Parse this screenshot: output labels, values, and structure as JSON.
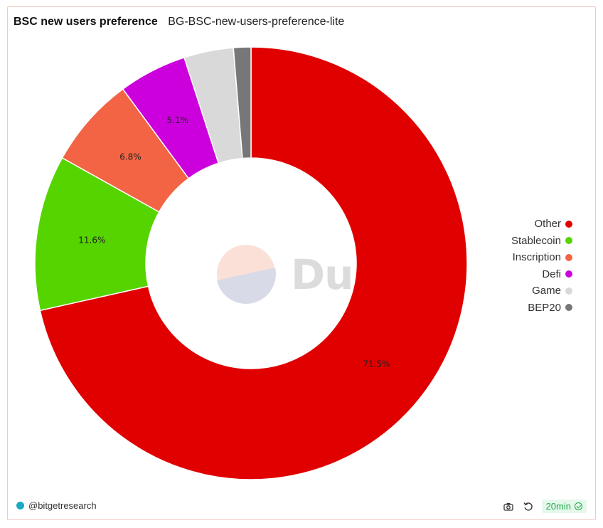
{
  "header": {
    "title": "BSC new users preference",
    "subtitle": "BG-BSC-new-users-preference-lite"
  },
  "watermark": {
    "text": "Dune"
  },
  "footer": {
    "author": "@bitgetresearch",
    "refresh_badge": "20min"
  },
  "icons": [
    "camera-icon",
    "refresh-icon",
    "check-circle-icon"
  ],
  "chart_data": {
    "type": "pie",
    "donut": true,
    "categories": [
      "Other",
      "Stablecoin",
      "Inscription",
      "Defi",
      "Game",
      "BEP20"
    ],
    "values": [
      71.5,
      11.6,
      6.8,
      5.1,
      3.7,
      1.3
    ],
    "labels": [
      "71.5%",
      "11.6%",
      "6.8%",
      "5.1%",
      "",
      ""
    ],
    "colors": [
      "#e00000",
      "#55d400",
      "#f26444",
      "#cc00dd",
      "#d9d9d9",
      "#777777"
    ],
    "legend_position": "right"
  }
}
